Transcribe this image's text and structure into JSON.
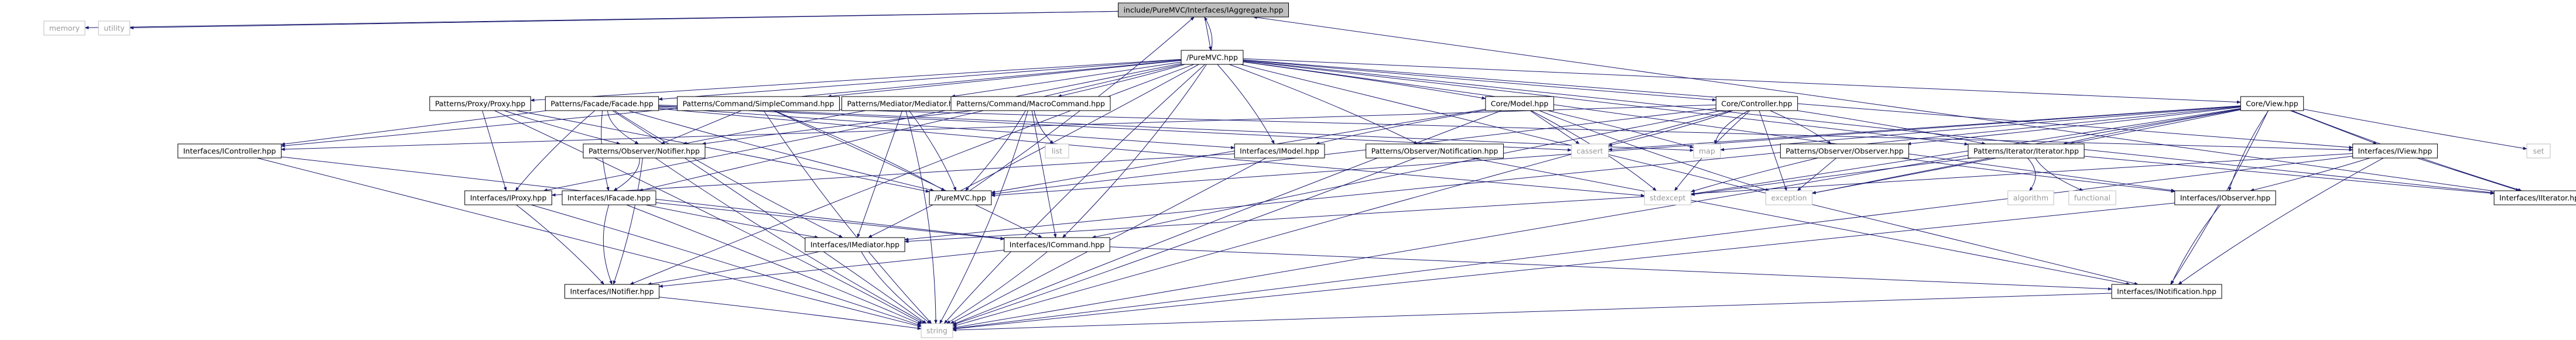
{
  "graph_title": "include/PureMVC/Interfaces/IAggregate.hpp",
  "colors": {
    "edge": "#191970",
    "node_border": "#000000",
    "node_fill": "#ffffff",
    "root_fill": "#bfbfbf",
    "external_border": "#bfbfbf",
    "external_text": "#9a9a9a"
  },
  "nodes": [
    {
      "id": "root",
      "label": "include/PureMVC/Interfaces/IAggregate.hpp",
      "kind": "root"
    },
    {
      "id": "memory",
      "label": "memory",
      "kind": "external"
    },
    {
      "id": "utility",
      "label": "utility",
      "kind": "external"
    },
    {
      "id": "puremvc",
      "label": "/PureMVC.hpp",
      "kind": "file"
    },
    {
      "id": "proxy",
      "label": "Patterns/Proxy/Proxy.hpp",
      "kind": "file"
    },
    {
      "id": "facade",
      "label": "Patterns/Facade/Facade.hpp",
      "kind": "file"
    },
    {
      "id": "simplecmd",
      "label": "Patterns/Command/SimpleCommand.hpp",
      "kind": "file"
    },
    {
      "id": "mediator",
      "label": "Patterns/Mediator/Mediator.hpp",
      "kind": "file"
    },
    {
      "id": "macrocmd",
      "label": "Patterns/Command/MacroCommand.hpp",
      "kind": "file"
    },
    {
      "id": "model",
      "label": "Core/Model.hpp",
      "kind": "file"
    },
    {
      "id": "controller",
      "label": "Core/Controller.hpp",
      "kind": "file"
    },
    {
      "id": "view",
      "label": "Core/View.hpp",
      "kind": "file"
    },
    {
      "id": "icontroller",
      "label": "Interfaces/IController.hpp",
      "kind": "file"
    },
    {
      "id": "notifier",
      "label": "Patterns/Observer/Notifier.hpp",
      "kind": "file"
    },
    {
      "id": "list",
      "label": "list",
      "kind": "external"
    },
    {
      "id": "imodel",
      "label": "Interfaces/IModel.hpp",
      "kind": "file"
    },
    {
      "id": "notification",
      "label": "Patterns/Observer/Notification.hpp",
      "kind": "file"
    },
    {
      "id": "cassert",
      "label": "cassert",
      "kind": "external"
    },
    {
      "id": "map",
      "label": "map",
      "kind": "external"
    },
    {
      "id": "observer",
      "label": "Patterns/Observer/Observer.hpp",
      "kind": "file"
    },
    {
      "id": "iterator",
      "label": "Patterns/Iterator/Iterator.hpp",
      "kind": "file"
    },
    {
      "id": "iview",
      "label": "Interfaces/IView.hpp",
      "kind": "file"
    },
    {
      "id": "set",
      "label": "set",
      "kind": "external"
    },
    {
      "id": "iproxy",
      "label": "Interfaces/IProxy.hpp",
      "kind": "file"
    },
    {
      "id": "ifacade",
      "label": "Interfaces/IFacade.hpp",
      "kind": "file"
    },
    {
      "id": "puremvc2",
      "label": "/PureMVC.hpp",
      "kind": "file"
    },
    {
      "id": "stdexcept",
      "label": "stdexcept",
      "kind": "external"
    },
    {
      "id": "exception",
      "label": "exception",
      "kind": "external"
    },
    {
      "id": "algorithm",
      "label": "algorithm",
      "kind": "external"
    },
    {
      "id": "functional",
      "label": "functional",
      "kind": "external"
    },
    {
      "id": "iobserver",
      "label": "Interfaces/IObserver.hpp",
      "kind": "file"
    },
    {
      "id": "iiterator",
      "label": "Interfaces/IIterator.hpp",
      "kind": "file"
    },
    {
      "id": "imediator",
      "label": "Interfaces/IMediator.hpp",
      "kind": "file"
    },
    {
      "id": "icommand",
      "label": "Interfaces/ICommand.hpp",
      "kind": "file"
    },
    {
      "id": "inotifier",
      "label": "Interfaces/INotifier.hpp",
      "kind": "file"
    },
    {
      "id": "inotification",
      "label": "Interfaces/INotification.hpp",
      "kind": "file"
    },
    {
      "id": "string",
      "label": "string",
      "kind": "external"
    }
  ],
  "edges": [
    [
      "root",
      "memory"
    ],
    [
      "root",
      "utility"
    ],
    [
      "root",
      "puremvc"
    ],
    [
      "puremvc",
      "root"
    ],
    [
      "puremvc",
      "proxy"
    ],
    [
      "puremvc",
      "facade"
    ],
    [
      "puremvc",
      "simplecmd"
    ],
    [
      "puremvc",
      "mediator"
    ],
    [
      "puremvc",
      "macrocmd"
    ],
    [
      "puremvc",
      "model"
    ],
    [
      "puremvc",
      "controller"
    ],
    [
      "puremvc",
      "view"
    ],
    [
      "puremvc",
      "icontroller"
    ],
    [
      "puremvc",
      "imodel"
    ],
    [
      "puremvc",
      "notification"
    ],
    [
      "puremvc",
      "iview"
    ],
    [
      "puremvc",
      "iproxy"
    ],
    [
      "puremvc",
      "ifacade"
    ],
    [
      "puremvc",
      "imediator"
    ],
    [
      "puremvc",
      "icommand"
    ],
    [
      "puremvc",
      "inotifier"
    ],
    [
      "puremvc",
      "inotification"
    ],
    [
      "puremvc",
      "iobserver"
    ],
    [
      "puremvc",
      "iiterator"
    ],
    [
      "puremvc",
      "iterator"
    ],
    [
      "puremvc",
      "string"
    ],
    [
      "proxy",
      "notifier"
    ],
    [
      "proxy",
      "iproxy"
    ],
    [
      "proxy",
      "puremvc2"
    ],
    [
      "proxy",
      "string"
    ],
    [
      "facade",
      "notifier"
    ],
    [
      "facade",
      "ifacade"
    ],
    [
      "facade",
      "icontroller"
    ],
    [
      "facade",
      "imodel"
    ],
    [
      "facade",
      "iview"
    ],
    [
      "facade",
      "puremvc2"
    ],
    [
      "facade",
      "cassert"
    ],
    [
      "facade",
      "stdexcept"
    ],
    [
      "facade",
      "string"
    ],
    [
      "facade",
      "map"
    ],
    [
      "facade",
      "imediator"
    ],
    [
      "facade",
      "iproxy"
    ],
    [
      "simplecmd",
      "notifier"
    ],
    [
      "simplecmd",
      "icommand"
    ],
    [
      "simplecmd",
      "puremvc2"
    ],
    [
      "simplecmd",
      "string"
    ],
    [
      "mediator",
      "notifier"
    ],
    [
      "mediator",
      "imediator"
    ],
    [
      "mediator",
      "puremvc2"
    ],
    [
      "mediator",
      "string"
    ],
    [
      "macrocmd",
      "notifier"
    ],
    [
      "macrocmd",
      "list"
    ],
    [
      "macrocmd",
      "icommand"
    ],
    [
      "macrocmd",
      "puremvc2"
    ],
    [
      "macrocmd",
      "string"
    ],
    [
      "model",
      "imodel"
    ],
    [
      "model",
      "puremvc2"
    ],
    [
      "model",
      "cassert"
    ],
    [
      "model",
      "map"
    ],
    [
      "model",
      "stdexcept"
    ],
    [
      "model",
      "exception"
    ],
    [
      "model",
      "string"
    ],
    [
      "controller",
      "icontroller"
    ],
    [
      "controller",
      "puremvc2"
    ],
    [
      "controller",
      "cassert"
    ],
    [
      "controller",
      "map"
    ],
    [
      "controller",
      "stdexcept"
    ],
    [
      "controller",
      "exception"
    ],
    [
      "controller",
      "observer"
    ],
    [
      "controller",
      "iterator"
    ],
    [
      "controller",
      "icommand"
    ],
    [
      "controller",
      "string"
    ],
    [
      "view",
      "iview"
    ],
    [
      "view",
      "puremvc2"
    ],
    [
      "view",
      "cassert"
    ],
    [
      "view",
      "map"
    ],
    [
      "view",
      "set"
    ],
    [
      "view",
      "stdexcept"
    ],
    [
      "view",
      "exception"
    ],
    [
      "view",
      "observer"
    ],
    [
      "view",
      "iterator"
    ],
    [
      "view",
      "iobserver"
    ],
    [
      "view",
      "imediator"
    ],
    [
      "view",
      "inotification"
    ],
    [
      "view",
      "string"
    ],
    [
      "view",
      "iiterator"
    ],
    [
      "icontroller",
      "icommand"
    ],
    [
      "icontroller",
      "string"
    ],
    [
      "notifier",
      "inotifier"
    ],
    [
      "notifier",
      "ifacade"
    ],
    [
      "notifier",
      "string"
    ],
    [
      "imodel",
      "iproxy"
    ],
    [
      "imodel",
      "string"
    ],
    [
      "notification",
      "inotification"
    ],
    [
      "notification",
      "string"
    ],
    [
      "observer",
      "iobserver"
    ],
    [
      "observer",
      "stdexcept"
    ],
    [
      "observer",
      "exception"
    ],
    [
      "iterator",
      "iiterator"
    ],
    [
      "iterator",
      "algorithm"
    ],
    [
      "iterator",
      "functional"
    ],
    [
      "iterator",
      "stdexcept"
    ],
    [
      "iterator",
      "exception"
    ],
    [
      "iview",
      "iobserver"
    ],
    [
      "iview",
      "imediator"
    ],
    [
      "iview",
      "inotification"
    ],
    [
      "iview",
      "string"
    ],
    [
      "iview",
      "iiterator"
    ],
    [
      "iproxy",
      "inotifier"
    ],
    [
      "iproxy",
      "string"
    ],
    [
      "ifacade",
      "inotifier"
    ],
    [
      "ifacade",
      "imediator"
    ],
    [
      "ifacade",
      "icommand"
    ],
    [
      "ifacade",
      "string"
    ],
    [
      "imediator",
      "inotifier"
    ],
    [
      "imediator",
      "string"
    ],
    [
      "icommand",
      "inotifier"
    ],
    [
      "icommand",
      "inotification"
    ],
    [
      "icommand",
      "string"
    ],
    [
      "inotifier",
      "string"
    ],
    [
      "inotification",
      "string"
    ],
    [
      "iobserver",
      "inotification"
    ],
    [
      "iobserver",
      "string"
    ],
    [
      "iiterator",
      "root"
    ],
    [
      "puremvc2",
      "root"
    ]
  ]
}
